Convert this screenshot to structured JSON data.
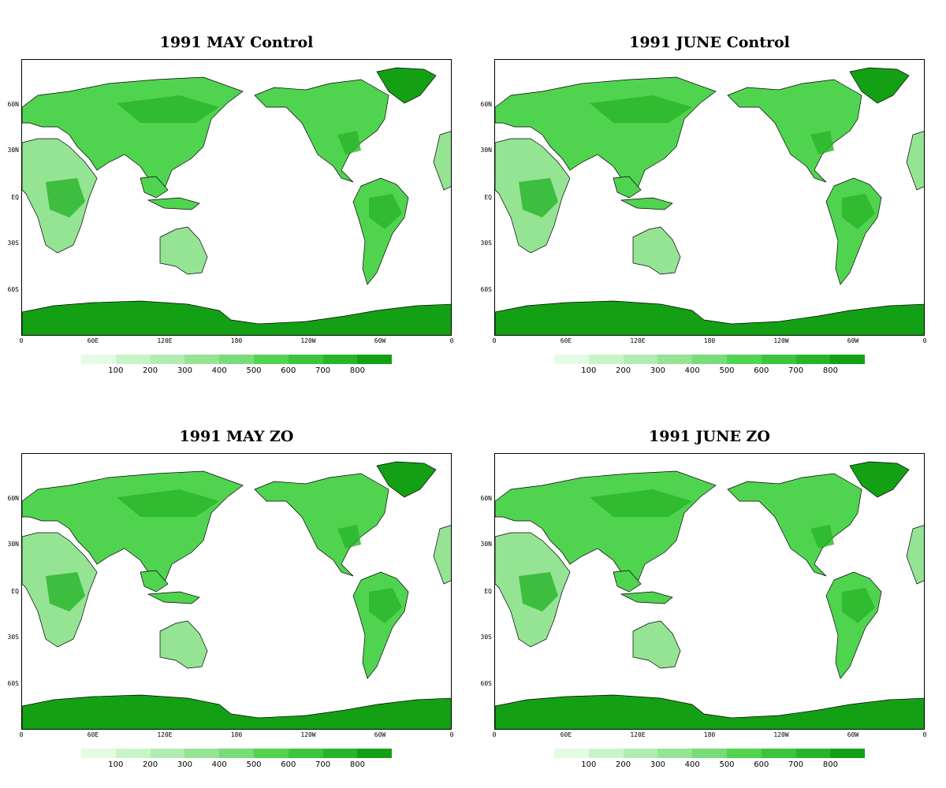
{
  "panels": [
    {
      "title": "1991 MAY Control"
    },
    {
      "title": "1991 JUNE Control"
    },
    {
      "title": "1991 MAY ZO"
    },
    {
      "title": "1991 JUNE ZO"
    }
  ],
  "lat_labels": [
    "60N",
    "30N",
    "EQ",
    "30S",
    "60S"
  ],
  "lon_labels": [
    "0",
    "60E",
    "120E",
    "180",
    "120W",
    "60W",
    "0"
  ],
  "colorbar": {
    "ticks": [
      "100",
      "200",
      "300",
      "400",
      "500",
      "600",
      "700",
      "800"
    ],
    "colors": [
      "#e4fbe4",
      "#c8f5c8",
      "#b0ecb0",
      "#94e494",
      "#78dc78",
      "#50d450",
      "#3cc43c",
      "#28b428",
      "#14a014"
    ]
  },
  "land_color": "#14a014"
}
